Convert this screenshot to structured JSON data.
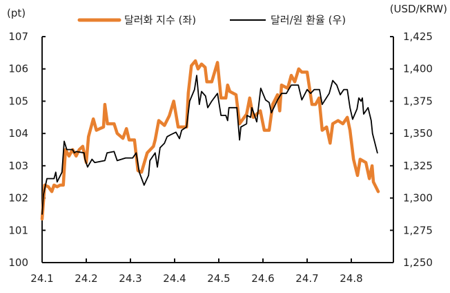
{
  "chart_data": {
    "type": "line",
    "left_unit": "(pt)",
    "right_unit": "(USD/KRW)",
    "left_ylim": [
      100,
      107
    ],
    "right_ylim": [
      1250,
      1425
    ],
    "left_ticks": [
      "100",
      "101",
      "102",
      "103",
      "104",
      "105",
      "106",
      "107"
    ],
    "right_ticks": [
      "1,250",
      "1,275",
      "1,300",
      "1,325",
      "1,350",
      "1,375",
      "1,400",
      "1,425"
    ],
    "x_ticks": [
      "24.1",
      "24.2",
      "24.3",
      "24.4",
      "24.5",
      "24.6",
      "24.7",
      "24.8"
    ],
    "x_note": "x values in months of 2024 (1 = Jan start)",
    "series": [
      {
        "name": "달러화 지수 (좌)",
        "axis": "left",
        "color": "#E8802F",
        "x": [
          1.0,
          1.06,
          1.14,
          1.22,
          1.27,
          1.34,
          1.41,
          1.48,
          1.53,
          1.61,
          1.69,
          1.77,
          1.84,
          1.92,
          2.0,
          2.05,
          2.16,
          2.23,
          2.31,
          2.39,
          2.42,
          2.48,
          2.63,
          2.7,
          2.83,
          2.91,
          2.97,
          3.09,
          3.17,
          3.25,
          3.38,
          3.52,
          3.56,
          3.64,
          3.77,
          3.88,
          3.98,
          4.08,
          4.27,
          4.31,
          4.38,
          4.47,
          4.53,
          4.61,
          4.69,
          4.73,
          4.84,
          4.97,
          5.05,
          5.16,
          5.2,
          5.25,
          5.39,
          5.47,
          5.63,
          5.7,
          5.78,
          5.94,
          6.03,
          6.14,
          6.22,
          6.33,
          6.38,
          6.42,
          6.56,
          6.64,
          6.72,
          6.81,
          6.88,
          7.0,
          7.11,
          7.19,
          7.27,
          7.34,
          7.44,
          7.52,
          7.58,
          7.7,
          7.81,
          7.91,
          7.97,
          8.05,
          8.14,
          8.2,
          8.33,
          8.41,
          8.47,
          8.5,
          8.61
        ],
        "values": [
          101.35,
          102.4,
          102.35,
          102.2,
          102.4,
          102.35,
          102.4,
          102.4,
          103.5,
          103.3,
          103.5,
          103.3,
          103.5,
          103.6,
          103.1,
          103.9,
          104.45,
          104.1,
          104.15,
          104.2,
          104.9,
          104.3,
          104.3,
          104.0,
          103.85,
          104.15,
          103.8,
          103.8,
          102.85,
          102.8,
          103.4,
          103.6,
          103.8,
          104.4,
          104.25,
          104.55,
          105.0,
          104.2,
          104.2,
          105.25,
          106.1,
          106.25,
          106.0,
          106.15,
          106.05,
          105.6,
          105.6,
          106.2,
          105.1,
          105.1,
          105.5,
          105.3,
          105.2,
          104.3,
          104.6,
          105.1,
          104.5,
          104.7,
          104.1,
          104.1,
          104.9,
          105.2,
          104.7,
          105.5,
          105.4,
          105.8,
          105.6,
          106.0,
          105.9,
          105.9,
          104.9,
          104.9,
          105.1,
          104.1,
          104.2,
          103.7,
          104.3,
          104.4,
          104.3,
          104.5,
          104.1,
          103.2,
          102.7,
          103.2,
          103.1,
          102.6,
          103.0,
          102.5,
          102.2
        ]
      },
      {
        "name": "달러/원 환율 (우)",
        "axis": "right",
        "color": "#000000",
        "x": [
          1.0,
          1.03,
          1.11,
          1.27,
          1.31,
          1.34,
          1.45,
          1.5,
          1.56,
          1.69,
          1.73,
          1.77,
          1.95,
          1.97,
          2.03,
          2.13,
          2.19,
          2.42,
          2.47,
          2.63,
          2.7,
          2.89,
          3.05,
          3.13,
          3.2,
          3.31,
          3.41,
          3.44,
          3.56,
          3.61,
          3.67,
          3.77,
          3.83,
          3.91,
          4.03,
          4.11,
          4.16,
          4.27,
          4.34,
          4.45,
          4.5,
          4.56,
          4.61,
          4.7,
          4.75,
          4.84,
          4.97,
          5.05,
          5.16,
          5.2,
          5.23,
          5.41,
          5.47,
          5.5,
          5.63,
          5.64,
          5.72,
          5.75,
          5.86,
          5.95,
          6.06,
          6.14,
          6.19,
          6.33,
          6.42,
          6.53,
          6.64,
          6.8,
          6.88,
          7.0,
          7.08,
          7.16,
          7.28,
          7.34,
          7.5,
          7.58,
          7.67,
          7.75,
          7.83,
          7.91,
          7.97,
          8.03,
          8.13,
          8.17,
          8.22,
          8.25,
          8.28,
          8.38,
          8.45,
          8.48,
          8.59
        ],
        "values": [
          1287.5,
          1302.5,
          1315,
          1315,
          1320,
          1312.5,
          1320,
          1344,
          1337.5,
          1337.5,
          1335,
          1336,
          1335,
          1330,
          1324,
          1330,
          1327.5,
          1329,
          1335,
          1336,
          1329,
          1331,
          1331,
          1335,
          1320,
          1310,
          1317.5,
          1329,
          1335,
          1324,
          1339,
          1342.5,
          1347.5,
          1349,
          1351,
          1346,
          1352.5,
          1355,
          1375,
          1384,
          1395,
          1372.5,
          1382.5,
          1379,
          1370,
          1375,
          1381,
          1364,
          1364,
          1360,
          1370,
          1370,
          1345,
          1355,
          1357.5,
          1364,
          1362.5,
          1370,
          1359,
          1385,
          1376,
          1374,
          1366,
          1376,
          1381,
          1381,
          1387.5,
          1387.5,
          1376,
          1384,
          1381,
          1384,
          1384,
          1372.5,
          1381,
          1391,
          1387.5,
          1380,
          1384,
          1384,
          1370,
          1361,
          1369,
          1377.5,
          1375,
          1377.5,
          1365,
          1370,
          1360,
          1350,
          1335
        ]
      }
    ],
    "legend_position": "top-center",
    "grid": false
  }
}
